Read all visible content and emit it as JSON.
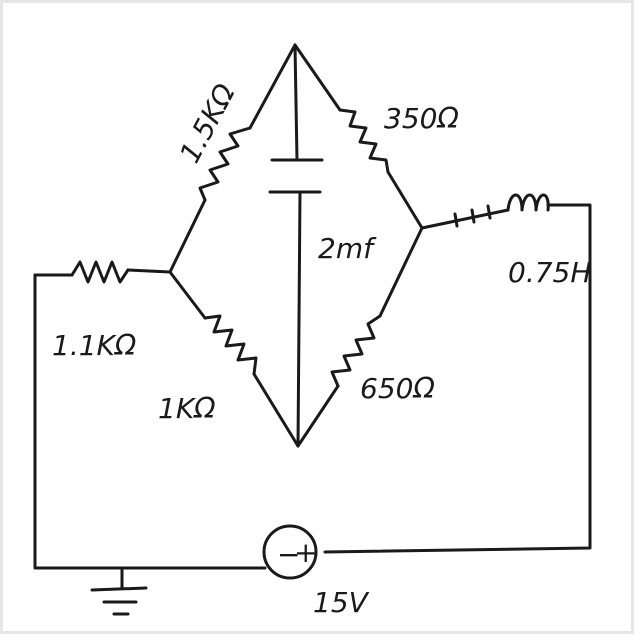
{
  "components": {
    "r_top_left": "1.5KΩ",
    "r_top_right": "350Ω",
    "capacitor": "2mf",
    "inductor": "0.75H",
    "r_series": "1.1KΩ",
    "r_bottom_left": "1KΩ",
    "r_bottom_right": "650Ω",
    "source": "15V",
    "source_minus": "−",
    "source_plus": "+"
  },
  "colors": {
    "ink": "#1a1a1a",
    "paper": "#ffffff",
    "frame": "#e6e6e6"
  },
  "icons": [
    "resistor-icon",
    "capacitor-icon",
    "inductor-icon",
    "voltage-source-icon",
    "ground-icon"
  ]
}
